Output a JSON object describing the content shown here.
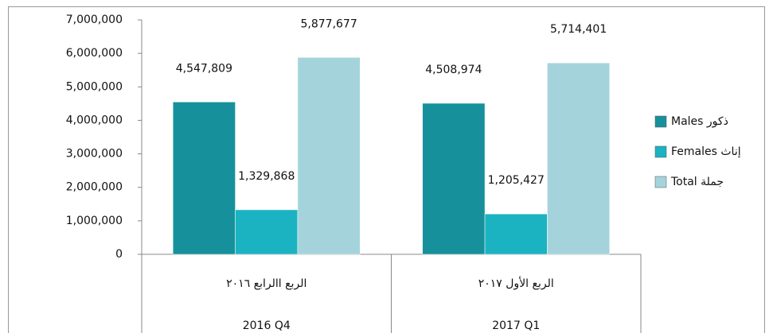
{
  "chart_data": {
    "type": "bar",
    "categories": [
      [
        "الربع االرابع ٢٠١٦",
        "2016 Q4"
      ],
      [
        "الربع الأول ٢٠١٧",
        "2017 Q1"
      ]
    ],
    "series": [
      {
        "name": "Males ذكور",
        "color": "#16919c",
        "values": [
          4547809,
          4508974
        ],
        "value_labels": [
          "4,547,809",
          "4,508,974"
        ]
      },
      {
        "name": "Females إناث",
        "color": "#1bb3c1",
        "values": [
          1329868,
          1205427
        ],
        "value_labels": [
          "1,329,868",
          "1,205,427"
        ]
      },
      {
        "name": "Total جملة",
        "color": "#a4d3db",
        "values": [
          5877677,
          5714401
        ],
        "value_labels": [
          "5,877,677",
          "5,714,401"
        ]
      }
    ],
    "ylim": [
      0,
      7000000
    ],
    "yticks": [
      0,
      {
        "value": 1000000,
        "label": "1,000,000"
      },
      {
        "value": 2000000,
        "label": "2,000,000"
      },
      {
        "value": 3000000,
        "label": "3,000,000"
      },
      {
        "value": 4000000,
        "label": "4,000,000"
      },
      {
        "value": 5000000,
        "label": "5,000,000"
      },
      {
        "value": 6000000,
        "label": "6,000,000"
      },
      {
        "value": 7000000,
        "label": "7,000,000"
      }
    ],
    "grid": false,
    "legend": "right"
  }
}
